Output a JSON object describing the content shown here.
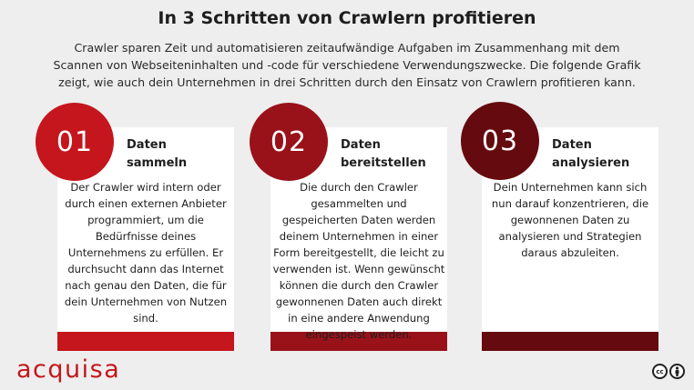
{
  "title": "In 3 Schritten von Crawlern profitieren",
  "intro": "Crawler sparen Zeit und automatisieren zeitaufwändige Aufgaben im Zusammenhang mit dem Scannen von Webseiteninhalten und -code für verschiedene Verwendungszwecke. Die folgende Grafik zeigt, wie auch dein Unternehmen in drei Schritten durch den Einsatz von Crawlern profitieren kann.",
  "steps": [
    {
      "number": "01",
      "title_line1": "Daten",
      "title_line2": "sammeln",
      "description": "Der Crawler wird intern oder durch einen externen Anbieter programmiert, um die Bedürfnisse deines Unternehmens zu erfüllen. Er durchsucht dann das Internet nach genau den Daten, die für dein Unternehmen von Nutzen sind.",
      "color": "#c4161c"
    },
    {
      "number": "02",
      "title_line1": "Daten",
      "title_line2": "bereitstellen",
      "description": "Die durch den Crawler gesammelten und gespeicherten Daten werden deinem Unternehmen in einer Form bereitgestellt, die leicht zu verwenden ist. Wenn gewünscht können die durch den Crawler gewonnenen Daten auch direkt in eine andere Anwendung eingespeist werden.",
      "color": "#99121a"
    },
    {
      "number": "03",
      "title_line1": "Daten",
      "title_line2": "analysieren",
      "description": "Dein Unternehmen kann sich nun darauf konzentrieren, die gewonnenen Daten zu analysieren und Strategien daraus abzuleiten.",
      "color": "#650a0e"
    }
  ],
  "logo": "acquisa",
  "license_icons": [
    "cc-icon",
    "by-attribution-icon"
  ]
}
